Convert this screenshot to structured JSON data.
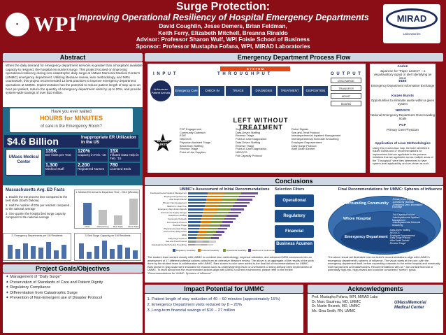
{
  "header": {
    "logo_left": "WPI",
    "title": "Surge Protection:",
    "subtitle": "Improving Operational Resiliency of Hospital Emergency Departments",
    "authors_line1": "David Coughlin, Jesse Demers, Brian Feldman,",
    "authors_line2": "Keith Ferry, Elizabeth Mitchell, Breanna Rinaldo",
    "advisor": "Advisor: Professor Sharon Wulf, WPI Foisie School of Business",
    "sponsor": "Sponsor: Professor Mustapha Fofana, WPI, MIRAD Laboratories",
    "logo_right": "MIRAD",
    "logo_right_sub": "Laboratories"
  },
  "abstract": {
    "heading": "Abstract",
    "text": "When the daily demand for emergency department services is greater than a hospital's available capacity to respond, the hospital encounters surge. This project focused on improving operational resiliency during non-catastrophic daily surge at UMass Memorial Medical Center's (UMMC) emergency department. Utilizing literature review, lean methodology, and MRA coursework, this project recommended 12 best practices to improve emergency department operations at UMMC. Implementation has the potential to reduce patient length of stay up to an hour per patient, reduce the quantity of emergency department visits by up to 20%, and provide system-wide savings of over $10 million.",
    "infographic": {
      "q_top": "Have you ever waited",
      "q_mid": "HOURS for MINUTES",
      "q_bot": "of care in the Emergency Room?",
      "big_value": "$4.6 Billion",
      "big_label": "Inappropriate ER Utilization in the US",
      "hospital": "UMass Medical Center",
      "stats": [
        {
          "value": "135K",
          "label": "ED Visits per Year"
        },
        {
          "value": "120%",
          "label": "Capacity in Feb. '15"
        },
        {
          "value": "15X",
          "label": "Inflated Data Help in Feb. '15"
        },
        {
          "value": "1,300",
          "label": "Medical Staff"
        },
        {
          "value": "2,200",
          "label": "Registered Nurses"
        },
        {
          "value": "780",
          "label": "Licensed Beds"
        }
      ]
    },
    "mass_heading": "Massachusetts Avg. ED Facts",
    "mass_facts": [
      "1. Double the ED process time compared to the best state (South Dakota)",
      "2. Half the number of EDs per resident compared to the national average",
      "3. One quarter the hospital bed surge capacity compared to the national average"
    ],
    "chart1_title": "1. Median ED Arrival to Departure Time - 2014 (Minutes)",
    "chart1_cats": [
      "Mass",
      "National Avg",
      "Best State",
      "Worst State"
    ],
    "chart2_title": "2. Emergency Departments per 1M Residents",
    "chart3_title": "3. Bed Surge Capacity per 1M Residents"
  },
  "goals": {
    "heading": "Project Goals/Objectives",
    "items": [
      "Management of \"Daily Surge\"",
      "Preservation of Standards of Care and Patient Dignity",
      "Regulatory Compliance",
      "Differentiation from Catastrophic Surge",
      "Prevention of Non-Emergent use of Disaster Protocol"
    ]
  },
  "flow": {
    "heading": "Emergency Department Process Flow",
    "system": "S Y S T E M",
    "input": "I N P U T",
    "throughput": "T H R O U G H P U T",
    "output": "O U T P U T",
    "arrival": "Unforeseen Patient Arrivals",
    "steps": [
      "Emergency Care",
      "CHECK IN",
      "TRIAGE",
      "DIAGNOSIS",
      "TREATMENT",
      "DISPOSITION"
    ],
    "outputs": [
      "DISCHARGE",
      "TRANSFER",
      "ADMIT",
      "BOARD"
    ],
    "left_without": "LEFT WITHOUT TREATMENT",
    "kaizen": "KAIZEN BURSTS",
    "col1": [
      "PCP Engagement",
      "Community Outreach",
      "EDIE",
      "NEDOCS",
      "Physician Assisted Triage",
      "Bed-Driven Staffing",
      "Reverse Triage",
      "Point of Use Supplies"
    ],
    "col2": [
      "Supplies at Point-of-Use",
      "Data-Driven Staffing",
      "Reverse Triage",
      "Point-of-Care Diagnostics",
      "Data-Driven Staffing",
      "Reverse Triage",
      "Point-of-Care Diagnostics",
      "NEDOCS",
      "Full Capacity Protocol"
    ],
    "col3": [
      "Robot Signals",
      "See-and-Treat Protocol",
      "Interdepartmental Inpatient Management",
      "Interdepartmental Schedule Smoothing",
      "Employee Empowerment",
      "Daily Surge Protocol",
      "After Death Debrief"
    ],
    "side": [
      {
        "h": "Andon",
        "t": "Japanese for \"Paper Lantern\" – a visual/auditory signal or alert identifying an issue"
      },
      {
        "h": "EDIE",
        "t": "Emergency Department Information Exchange"
      },
      {
        "h": "Kaizen Bursts",
        "t": "Opportunities to eliminate waste within a given system"
      },
      {
        "h": "NEDOCS",
        "t": "National Emergency Department Overcrowding Scale"
      },
      {
        "h": "PCP",
        "t": "Primary Care Physician"
      }
    ],
    "app_heading": "Application of Lean Methodologies",
    "app_text": "Using this process flow map, the team identified 6 Kaizen Bursts and 17 recommendations for improvement that are applicable to the process. Initiatives that are applicable across multiple areas of the \"Throughput\" were then determined to have system-level applicability, and are shown as such."
  },
  "conclusions": {
    "heading": "Conclusions",
    "chart_title": "UMMC's Assessment of Initial Recommendations",
    "rows": [
      "Interdepartmental Inpatient Management",
      "Employee Empowerment",
      "After Death Debrief",
      "Primary Care Engagement",
      "NEDOCS - Real Time",
      "Emergency Dept Andon Signals",
      "Point-of-Use Supply Storage",
      "Data-Driven Staffing",
      "Community Outreach",
      "Full Capacity Protocol",
      "Reverse Triage",
      "Physician Assisted Triage",
      "Point-of-Care Diagnostics",
      "EDIE",
      "Daily Surge Protocol",
      "See-and-Treat Protocol",
      "Interdepartmental Schedule Smoothing"
    ],
    "legend": [
      "Regulatory Feasibility",
      "Financial Feasibility",
      "Operational Feasibility",
      "Likelihood of Implementation"
    ],
    "selection_title": "Selection Filters",
    "filters": [
      "Operational",
      "Regulatory",
      "Financial",
      "Business Acumen"
    ],
    "final_title": "Final Recommendations for UMMC: Spheres of Influence",
    "rings": [
      "Surrounding Community",
      "Whole Hospital",
      "Emergency Department"
    ],
    "ring_items_1": [
      "-Primary Care Engagement",
      "-Community Outreach",
      "-Emergency Dept. Information Exchange"
    ],
    "ring_items_2": [
      "-Full Capacity Protocol",
      "-Interdepartmental Inpatient Management",
      "-Interdepartmental Schedule Smoothing"
    ],
    "ring_items_3": [
      "-Data-Driven Staffing",
      "-NEDOCS",
      "-Employee Empowerment",
      "-Daily Surge Protocol",
      "-After Death Debrief",
      "-Reverse Triage*"
    ],
    "text_left": "The student team worked closely with UMMC to combine lean methodology, empirical validation, and advanced MRA coursework into an assessment of 17 different potential actions culled from an extensive literature review. The above is an aggregate of the results of the work done by the student team in collaboration with UMMC. Bars shown in color were added to the final list of recommendations for UMMC. Bars shown in gray scale were excluded for reasons such as underwhelming return on investment or being already been implemented at UMMC. To learn about how the recommended actions align with UMMC's current environment, please refer to the exhibit \"Recommendations for UMMC: Spheres of Influence\".",
    "text_right": "The above visual aid illustrates how our team's recommendations align with UMMC's emergency department's spheres of influence. The visual starts at the core, with the emergency department itself, before expanding outwards to the entire hospital and eventually external partners and stakeholders. Recommendations with an * are considered bold or potentially high-risk, high-reward and could be considered \"stretch\" goals."
  },
  "impact": {
    "heading": "Impact Potential for UMMC",
    "items": [
      "Patient length of stay reduction of 40 – 60 minutes (approximately 15%)",
      "Emergency Department visits reduced by 8 – 20%",
      "Long-term financial savings of $10 – 27 million"
    ]
  },
  "ack": {
    "heading": "Acknowledgments",
    "items": [
      "Prof. Mustapha Fofana, WPI, MIRAD Labs",
      "Dr. Marc Gautreau, MD, UMMC",
      "Dr. Martin Reznek, MD, UMMC",
      "Ms. Gina Smith, RN, UMMC"
    ],
    "logo": "UMassMemorial Medical Center"
  },
  "colors": {
    "maroon": "#8b0d16",
    "navy": "#1c2b5e",
    "header_box": "#cfd8e3"
  }
}
